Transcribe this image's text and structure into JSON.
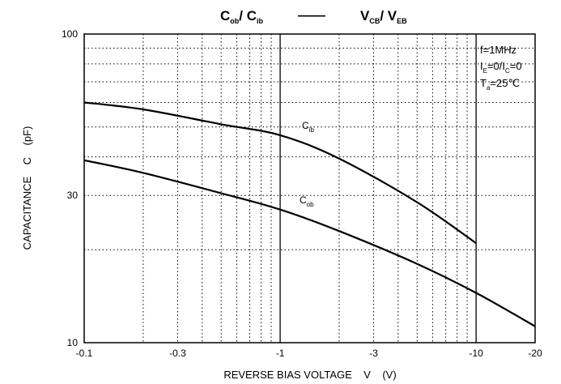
{
  "chart_data": {
    "type": "line",
    "title": {
      "left_main": "C",
      "left_sub": "ob",
      "left_sep": "/ C",
      "left_sub2": "ib",
      "dash": "——",
      "right_main": "V",
      "right_sub": "CB",
      "right_sep": "/ V",
      "right_sub2": "EB"
    },
    "xlabel": "REVERSE BIAS VOLTAGE    V    (V)",
    "ylabel": "CAPACITANCE    C    (pF)",
    "x_scale": "log",
    "y_scale": "log",
    "x_ticks": [
      {
        "value": 0.1,
        "label": "-0.1"
      },
      {
        "value": 0.3,
        "label": "-0.3"
      },
      {
        "value": 1,
        "label": "-1"
      },
      {
        "value": 3,
        "label": "-3"
      },
      {
        "value": 10,
        "label": "-10"
      },
      {
        "value": 20,
        "label": "-20"
      }
    ],
    "y_ticks": [
      {
        "value": 10,
        "label": "10"
      },
      {
        "value": 30,
        "label": "30"
      },
      {
        "value": 100,
        "label": "100"
      }
    ],
    "xlim": [
      0.1,
      20
    ],
    "ylim": [
      10,
      100
    ],
    "grid": true,
    "annotations": {
      "line1": "f=1MHz",
      "line2_a": "I",
      "line2_sub1": "E",
      "line2_b": "=0/I",
      "line2_sub2": "C",
      "line2_c": "=0",
      "line3_a": "T",
      "line3_sub": "a",
      "line3_b": "=25℃"
    },
    "series": [
      {
        "name": "C",
        "name_sub": "ib",
        "x": [
          0.1,
          0.2,
          0.5,
          1,
          2,
          5,
          10
        ],
        "y": [
          60,
          57,
          51,
          47,
          39.5,
          28.5,
          21
        ]
      },
      {
        "name": "C",
        "name_sub": "ob",
        "x": [
          0.1,
          0.2,
          0.5,
          1,
          2,
          5,
          10,
          20
        ],
        "y": [
          39,
          35.5,
          30.5,
          27,
          23,
          18,
          14.5,
          11.3
        ]
      }
    ]
  }
}
